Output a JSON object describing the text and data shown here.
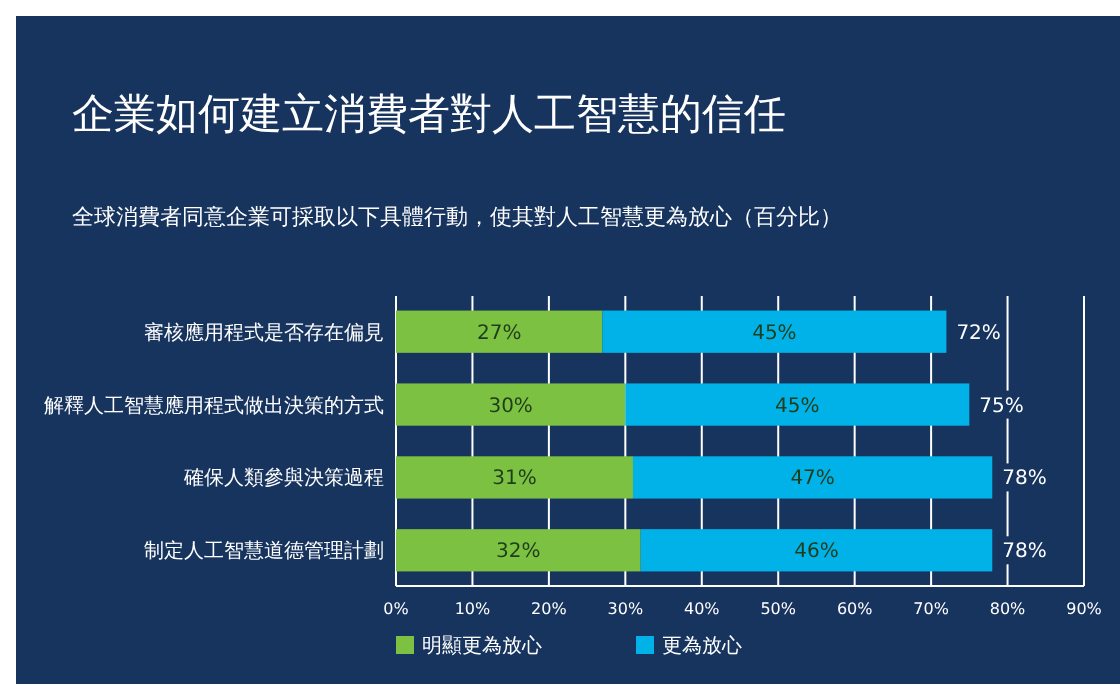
{
  "chart_data": {
    "type": "bar",
    "orientation": "horizontal",
    "stacked": true,
    "title": "企業如何建立消費者對人工智慧的信任",
    "subtitle": "全球消費者同意企業可採取以下具體行動，使其對人工智慧更為放心（百分比）",
    "categories": [
      "審核應用程式是否存在偏見",
      "解釋人工智慧應用程式做出決策的方式",
      "確保人類參與決策過程",
      "制定人工智慧道德管理計劃"
    ],
    "series": [
      {
        "name": "明顯更為放心",
        "color": "#7dc142",
        "values": [
          27,
          30,
          31,
          32
        ],
        "value_labels": [
          "27%",
          "30%",
          "31%",
          "32%"
        ]
      },
      {
        "name": "更為放心",
        "color": "#00b2e8",
        "values": [
          45,
          45,
          47,
          46
        ],
        "value_labels": [
          "45%",
          "45%",
          "47%",
          "46%"
        ]
      }
    ],
    "totals": [
      "72%",
      "75%",
      "78%",
      "78%"
    ],
    "xlim": [
      0,
      90
    ],
    "xticks": [
      {
        "value": 0,
        "label": "0%"
      },
      {
        "value": 10,
        "label": "10%"
      },
      {
        "value": 20,
        "label": "20%"
      },
      {
        "value": 30,
        "label": "30%"
      },
      {
        "value": 40,
        "label": "40%"
      },
      {
        "value": 50,
        "label": "50%"
      },
      {
        "value": 60,
        "label": "60%"
      },
      {
        "value": 70,
        "label": "70%"
      },
      {
        "value": 80,
        "label": "80%"
      },
      {
        "value": 90,
        "label": "90%"
      }
    ],
    "grid": "x",
    "legend": "bottom left"
  }
}
